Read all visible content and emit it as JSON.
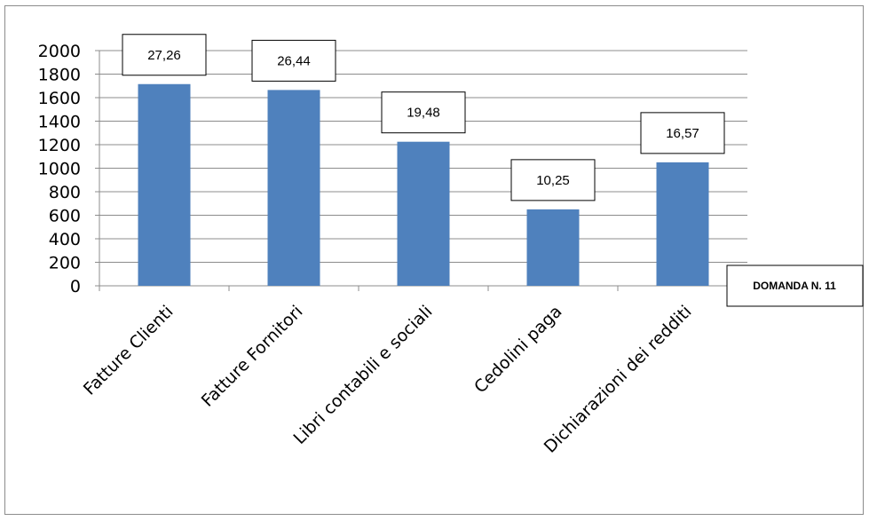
{
  "chart_data": {
    "type": "bar",
    "categories": [
      "Fatture Clienti",
      "Fatture Fornitori",
      "Libri contabili e sociali",
      "Cedolini paga",
      "Dichiarazioni dei redditi"
    ],
    "values": [
      1715,
      1665,
      1225,
      650,
      1050
    ],
    "data_labels": [
      "27,26",
      "26,44",
      "19,48",
      "10,25",
      "16,57"
    ],
    "yticks": [
      "0",
      "200",
      "400",
      "600",
      "800",
      "1000",
      "1200",
      "1400",
      "1600",
      "1800",
      "2000"
    ],
    "ylim": [
      0,
      2000
    ],
    "grid": true,
    "bar_color": "#4f81bd",
    "annotation": "DOMANDA N. 11"
  }
}
